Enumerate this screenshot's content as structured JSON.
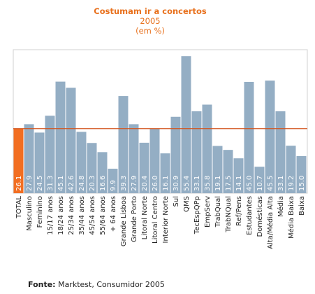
{
  "chart_data": {
    "type": "bar",
    "title": "Costumam ir a concertos",
    "subtitle_year": "2005",
    "subtitle_unit": "(em %)",
    "categories": [
      "TOTAL",
      "Masculino",
      "Feminino",
      "15/17 anos",
      "18/24 anos",
      "25/34 anos",
      "35/44 anos",
      "45/54 anos",
      "55/64 anos",
      "+ 64 anos",
      "Grande Lisboa",
      "Grande Porto",
      "Litoral Norte",
      "Litoral Centro",
      "Interior Norte",
      "Sul",
      "QMS",
      "TecEspQPp",
      "EmpServ",
      "TrabQual",
      "TrabNQual",
      "Ref/Pens",
      "Estudantes",
      "Domésticas",
      "Alta/Média Alta",
      "Média",
      "Média Baixa",
      "Baixa"
    ],
    "values": [
      26.1,
      27.9,
      24.5,
      31.3,
      45.1,
      42.6,
      24.8,
      20.3,
      16.6,
      9.9,
      39.3,
      27.9,
      20.4,
      26.0,
      16.1,
      30.9,
      55.4,
      33.1,
      35.8,
      19.1,
      17.5,
      14.1,
      45.0,
      10.7,
      45.5,
      33.1,
      19.2,
      15.0
    ],
    "value_labels": [
      "26.1",
      "27.9",
      "24.5",
      "31.3",
      "45.1",
      "42.6",
      "24.8",
      "20.3",
      "16.6",
      "9.9",
      "39.3",
      "27.9",
      "20.4",
      "26.0",
      "16.1",
      "30.9",
      "55.4",
      "33.1",
      "35.8",
      "19.1",
      "17.5",
      "14.1",
      "45.0",
      "10.7",
      "45.5",
      "33.1",
      "19.2",
      "15.0"
    ],
    "highlight_index": 0,
    "reference_line": 26.1,
    "ylim": [
      0,
      58
    ],
    "grid": false,
    "legend": "none",
    "colors": {
      "bar": "#94aec4",
      "highlight": "#f26e21",
      "reference_line": "#d2551e",
      "plot_border": "#d0d0d0",
      "title": "#e8701c"
    }
  },
  "source": {
    "label": "Fonte:",
    "text": " Marktest, Consumidor 2005"
  }
}
